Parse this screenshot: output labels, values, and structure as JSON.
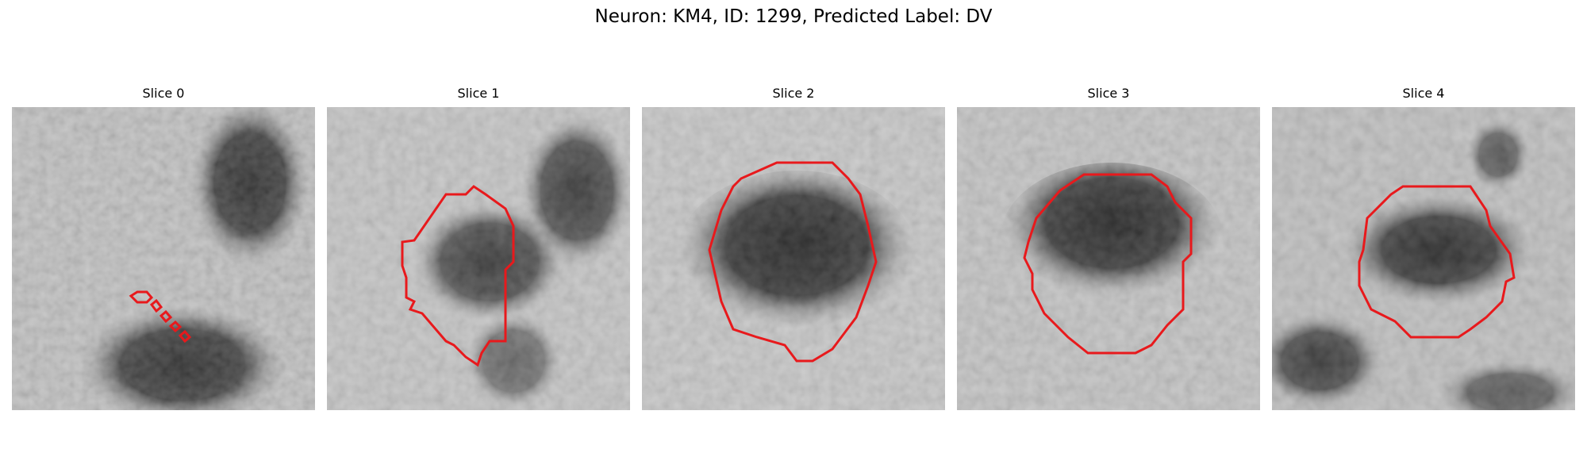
{
  "figure": {
    "title": "Neuron: KM4, ID: 1299, Predicted Label: DV"
  },
  "panels": [
    {
      "title": "Slice 0"
    },
    {
      "title": "Slice 1"
    },
    {
      "title": "Slice 2"
    },
    {
      "title": "Slice 3"
    },
    {
      "title": "Slice 4"
    }
  ],
  "colors": {
    "contour": "#e8191c",
    "background": "#ffffff"
  }
}
